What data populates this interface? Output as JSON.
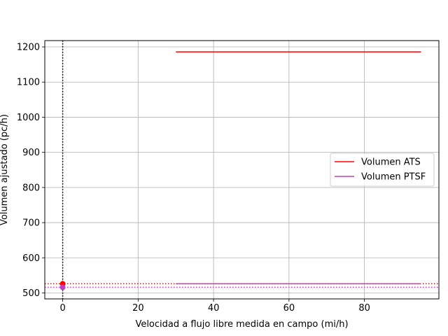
{
  "chart_data": {
    "type": "line",
    "title": "",
    "xlabel": "Velocidad a flujo libre medida en campo (mi/h)",
    "ylabel": "Volumen ajustado (pc/h)",
    "xlim": [
      -4.75,
      99.75
    ],
    "ylim": [
      483.0,
      1218.0
    ],
    "xticks": [
      0,
      20,
      40,
      60,
      80
    ],
    "yticks": [
      500,
      600,
      700,
      800,
      900,
      1000,
      1100,
      1200
    ],
    "grid": true,
    "legend_position": "center-right",
    "series": [
      {
        "name": "Volumen ATS",
        "color": "#ff0000",
        "x": [
          30,
          95
        ],
        "y": [
          1186,
          1186
        ]
      },
      {
        "name": "Volumen PTSF",
        "color": "#bf40bf",
        "x": [
          30,
          95
        ],
        "y": [
          526,
          526
        ]
      }
    ],
    "reference_lines": [
      {
        "orientation": "horizontal",
        "value": 526,
        "color": "#ff0000",
        "style": "dotted"
      },
      {
        "orientation": "horizontal",
        "value": 516,
        "color": "#bf40bf",
        "style": "dotted"
      },
      {
        "orientation": "vertical",
        "value": 0,
        "color": "#000000",
        "style": "dotted"
      }
    ],
    "points": [
      {
        "x": 0,
        "y": 526,
        "color": "#ff0000"
      },
      {
        "x": 0,
        "y": 516,
        "color": "#bf40bf"
      }
    ]
  }
}
